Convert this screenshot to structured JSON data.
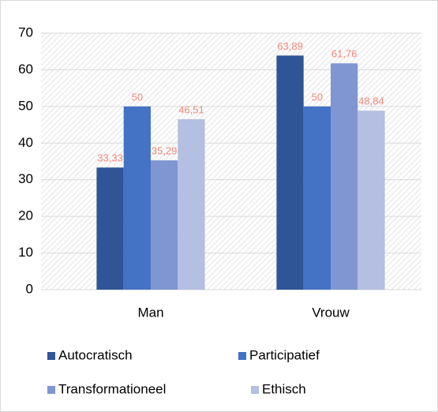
{
  "chart_data": {
    "type": "bar",
    "categories": [
      "Man",
      "Vrouw"
    ],
    "series": [
      {
        "name": "Autocratisch",
        "color": "#2f5597",
        "values": [
          33.33,
          63.89
        ],
        "value_labels": [
          "33,33",
          "63,89"
        ]
      },
      {
        "name": "Participatief",
        "color": "#4472c4",
        "values": [
          50,
          50
        ],
        "value_labels": [
          "50",
          "50"
        ]
      },
      {
        "name": "Transformationeel",
        "color": "#7f96d2",
        "values": [
          35.29,
          61.76
        ],
        "value_labels": [
          "35,29",
          "61,76"
        ]
      },
      {
        "name": "Ethisch",
        "color": "#b4bfe1",
        "values": [
          46.51,
          48.84
        ],
        "value_labels": [
          "46,51",
          "48,84"
        ]
      }
    ],
    "ylim": [
      0,
      70
    ],
    "yticks": [
      0,
      10,
      20,
      30,
      40,
      50,
      60,
      70
    ],
    "grid": true,
    "legend": "bottom"
  }
}
